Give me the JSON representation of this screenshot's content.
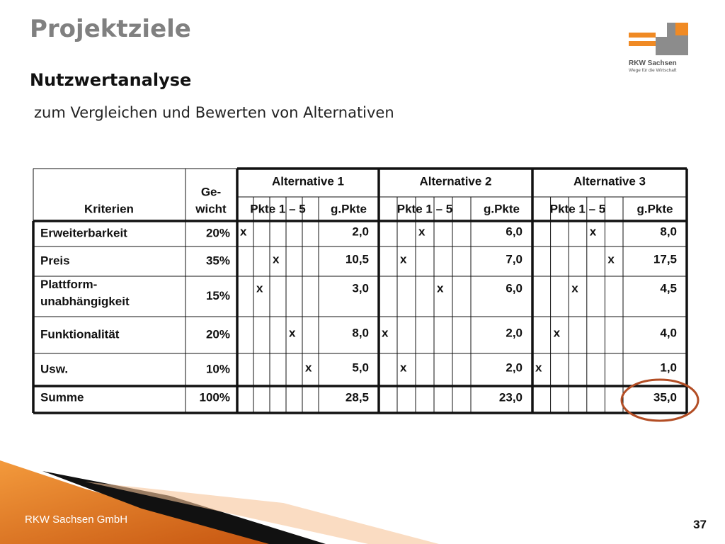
{
  "header": {
    "title": "Projektziele",
    "subtitle": "Nutzwertanalyse",
    "description": "zum Vergleichen und Bewerten von Alternativen"
  },
  "logo": {
    "name": "RKW Sachsen",
    "slogan": "Wege für die Wirtschaft"
  },
  "table": {
    "columns": {
      "criterion": "Kriterien",
      "weight": [
        "Ge-",
        "wicht"
      ],
      "alternatives": [
        "Alternative 1",
        "Alternative 2",
        "Alternative 3"
      ],
      "points": "Pkte 1 – 5",
      "weighted": "g.Pkte"
    },
    "rows": [
      {
        "criterion": [
          "Erweiterbarkeit"
        ],
        "weight": "20%",
        "cells": [
          {
            "score": 1,
            "mark": "x",
            "value": "2,0"
          },
          {
            "score": 3,
            "mark": "x",
            "value": "6,0"
          },
          {
            "score": 4,
            "mark": "x",
            "value": "8,0"
          }
        ]
      },
      {
        "criterion": [
          "Preis"
        ],
        "weight": "35%",
        "cells": [
          {
            "score": 3,
            "mark": "x",
            "value": "10,5"
          },
          {
            "score": 2,
            "mark": "x",
            "value": "7,0"
          },
          {
            "score": 5,
            "mark": "x",
            "value": "17,5"
          }
        ]
      },
      {
        "criterion": [
          "Plattform-",
          "unabhängigkeit"
        ],
        "weight": "15%",
        "cells": [
          {
            "score": 2,
            "mark": "x",
            "value": "3,0"
          },
          {
            "score": 4,
            "mark": "x",
            "value": "6,0"
          },
          {
            "score": 3,
            "mark": "x",
            "value": "4,5"
          }
        ]
      },
      {
        "criterion": [
          "Funktionalität"
        ],
        "weight": "20%",
        "cells": [
          {
            "score": 4,
            "mark": "x",
            "value": "8,0"
          },
          {
            "score": 1,
            "mark": "x",
            "value": "2,0"
          },
          {
            "score": 2,
            "mark": "x",
            "value": "4,0"
          }
        ]
      },
      {
        "criterion": [
          "Usw."
        ],
        "weight": "10%",
        "cells": [
          {
            "score": 5,
            "mark": "x",
            "value": "5,0"
          },
          {
            "score": 2,
            "mark": "x",
            "value": "2,0"
          },
          {
            "score": 1,
            "mark": "x",
            "value": "1,0"
          }
        ]
      }
    ],
    "total": {
      "criterion": "Summe",
      "weight": "100%",
      "values": [
        "28,5",
        "23,0",
        "35,0"
      ]
    }
  },
  "footer": {
    "company": "RKW Sachsen GmbH",
    "page": "37"
  }
}
